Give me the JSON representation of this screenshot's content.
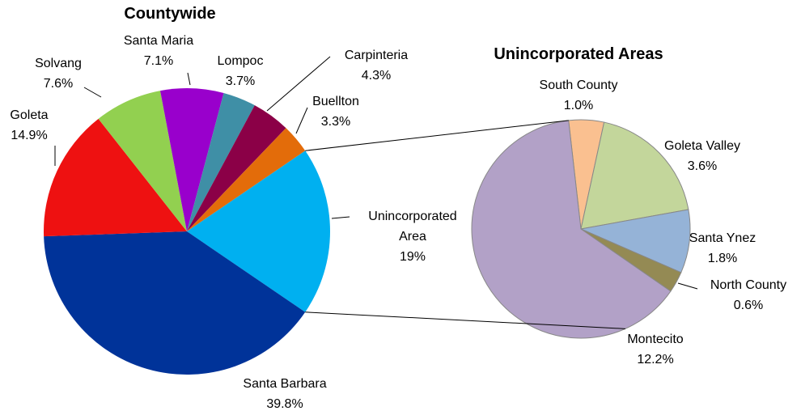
{
  "chart_data": [
    {
      "type": "pie",
      "title": "Countywide",
      "categories": [
        "Unincorporated Area",
        "Santa Barbara",
        "Goleta",
        "Solvang",
        "Santa Maria",
        "Lompoc",
        "Carpinteria",
        "Buellton"
      ],
      "values": [
        19,
        39.8,
        14.9,
        7.6,
        7.1,
        3.7,
        4.3,
        3.3
      ],
      "value_labels": [
        "19%",
        "39.8%",
        "14.9%",
        "7.6%",
        "7.1%",
        "3.7%",
        "4.3%",
        "3.3%"
      ],
      "colors": [
        "#00b0f0",
        "#003399",
        "#ee1111",
        "#92d050",
        "#9900cc",
        "#3f8fa6",
        "#8b0047",
        "#e36c0a"
      ]
    },
    {
      "type": "pie",
      "title": "Unincorporated Areas",
      "categories": [
        "South County",
        "Goleta Valley",
        "Santa Ynez",
        "North County",
        "Montecito"
      ],
      "values": [
        1.0,
        3.6,
        1.8,
        0.6,
        12.2
      ],
      "value_labels": [
        "1.0%",
        "3.6%",
        "1.8%",
        "0.6%",
        "12.2%"
      ],
      "colors": [
        "#fac090",
        "#c3d69b",
        "#95b3d7",
        "#948a54",
        "#b2a1c7"
      ]
    }
  ]
}
